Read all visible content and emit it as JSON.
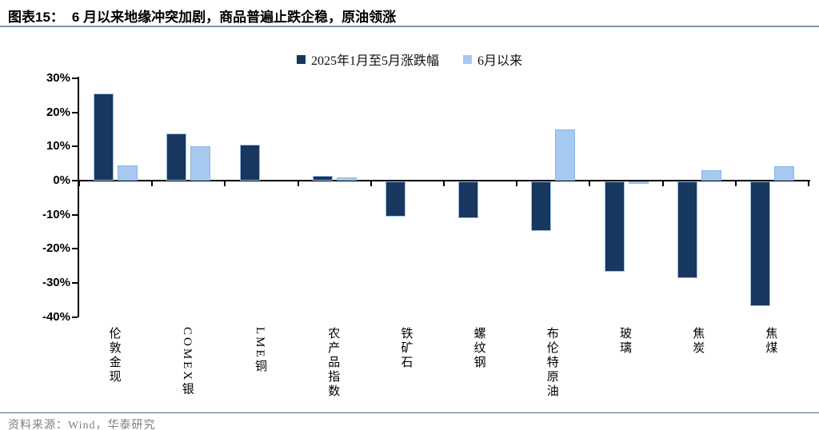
{
  "header": {
    "prefix": "图表15：",
    "title": "6 月以来地缘冲突加剧，商品普遍止跌企稳，原油领涨"
  },
  "legend": [
    {
      "label": "2025年1月至5月涨跌幅",
      "color": "#17375e"
    },
    {
      "label": "6月以来",
      "color": "#a6c9ef"
    }
  ],
  "footer": {
    "source": "资料来源：Wind，华泰研究"
  },
  "colors": {
    "dark_series": "#17375e",
    "light_series": "#a6c9ef",
    "axis": "#000000",
    "rule": "#8296ab"
  },
  "chart_data": {
    "type": "bar",
    "title": "6 月以来地缘冲突加剧，商品普遍止跌企稳，原油领涨",
    "categories": [
      "伦敦金现",
      "COMEX银",
      "LME铜",
      "农产品指数",
      "铁矿石",
      "螺纹钢",
      "布伦特原油",
      "玻璃",
      "焦炭",
      "焦煤"
    ],
    "series": [
      {
        "name": "2025年1月至5月涨跌幅",
        "color": "#17375e",
        "border": "#9dc3e6",
        "values": [
          25.5,
          13.8,
          10.5,
          1.5,
          -10.3,
          -10.7,
          -14.5,
          -26.5,
          -28.3,
          -36.5
        ]
      },
      {
        "name": "6月以来",
        "color": "#a6c9ef",
        "border": "#8db4e2",
        "values": [
          4.4,
          10.0,
          0,
          1.0,
          0,
          0,
          15.0,
          -0.8,
          3.0,
          4.3
        ]
      }
    ],
    "xlabel": "",
    "ylabel": "",
    "ylim": [
      -40,
      30
    ],
    "yticks": [
      30,
      20,
      10,
      0,
      -10,
      -20,
      -30,
      -40
    ],
    "ytick_suffix": "%",
    "grid": false,
    "legend_position": "top-center"
  }
}
